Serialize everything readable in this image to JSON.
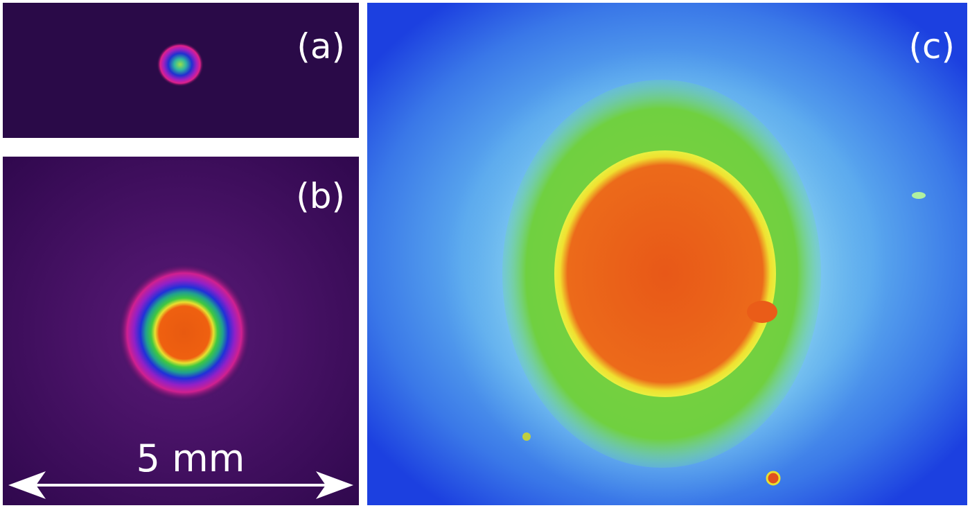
{
  "panels": [
    {
      "label": "(a)"
    },
    {
      "label": "(b)"
    },
    {
      "label": "(c)"
    }
  ],
  "scale_bar": {
    "label": "5 mm"
  }
}
